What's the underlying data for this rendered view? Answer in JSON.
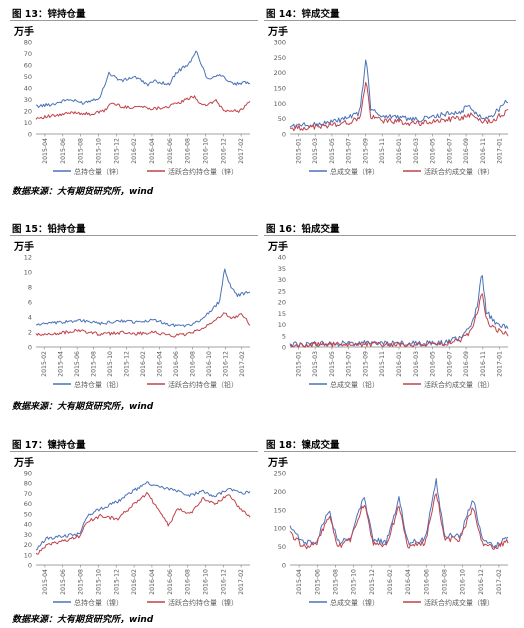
{
  "figures": [
    {
      "title": "图 13：锌持仓量"
    },
    {
      "title": "图 14：锌成交量"
    },
    {
      "title": "图 15：铅持仓量"
    },
    {
      "title": "图 16：铅成交量"
    },
    {
      "title": "图 17：镍持仓量"
    },
    {
      "title": "图 18：镍成交量"
    }
  ],
  "sources": [
    "数据来源：大有期货研究所，wind",
    "数据来源：大有期货研究所，wind",
    "数据来源：大有期货研究所，wind"
  ],
  "colors": {
    "series1": "#4a72b8",
    "series2": "#c0424b",
    "axis": "#808080",
    "text": "#595959"
  },
  "chart_data": [
    {
      "type": "line",
      "title": "图 13：锌持仓量",
      "unit_label": "万手",
      "ylim": [
        0,
        80
      ],
      "yticks": [
        0,
        10,
        20,
        30,
        40,
        50,
        60,
        70,
        80
      ],
      "xticks": [
        "2015-04",
        "2015-06",
        "2015-08",
        "2015-10",
        "2015-12",
        "2016-02",
        "2016-04",
        "2016-06",
        "2016-08",
        "2016-10",
        "2016-12",
        "2017-02"
      ],
      "legend_position": "bottom",
      "series": [
        {
          "name": "总持仓量（锌）",
          "anchors": [
            [
              0,
              24
            ],
            [
              0.08,
              26
            ],
            [
              0.15,
              30
            ],
            [
              0.22,
              27
            ],
            [
              0.3,
              32
            ],
            [
              0.34,
              53
            ],
            [
              0.4,
              46
            ],
            [
              0.46,
              50
            ],
            [
              0.52,
              43
            ],
            [
              0.56,
              46
            ],
            [
              0.62,
              43
            ],
            [
              0.66,
              54
            ],
            [
              0.72,
              62
            ],
            [
              0.75,
              72
            ],
            [
              0.8,
              48
            ],
            [
              0.86,
              52
            ],
            [
              0.92,
              43
            ],
            [
              1.0,
              45
            ]
          ]
        },
        {
          "name": "活跃合约持仓量（锌）",
          "anchors": [
            [
              0,
              14
            ],
            [
              0.1,
              16
            ],
            [
              0.18,
              19
            ],
            [
              0.25,
              17
            ],
            [
              0.32,
              20
            ],
            [
              0.35,
              27
            ],
            [
              0.42,
              23
            ],
            [
              0.48,
              24
            ],
            [
              0.55,
              22
            ],
            [
              0.62,
              24
            ],
            [
              0.68,
              28
            ],
            [
              0.74,
              33
            ],
            [
              0.78,
              24
            ],
            [
              0.84,
              29
            ],
            [
              0.88,
              20
            ],
            [
              0.95,
              20
            ],
            [
              1.0,
              28
            ]
          ]
        }
      ]
    },
    {
      "type": "line",
      "title": "图 14：锌成交量",
      "unit_label": "万手",
      "ylim": [
        0,
        300
      ],
      "yticks": [
        0,
        50,
        100,
        150,
        200,
        250,
        300
      ],
      "xticks": [
        "2015-01",
        "2015-03",
        "2015-05",
        "2015-07",
        "2015-09",
        "2015-11",
        "2016-01",
        "2016-03",
        "2016-05",
        "2016-07",
        "2016-09",
        "2016-11",
        "2017-01"
      ],
      "legend_position": "bottom",
      "series": [
        {
          "name": "总成交量（锌）",
          "anchors": [
            [
              0,
              25
            ],
            [
              0.1,
              30
            ],
            [
              0.2,
              40
            ],
            [
              0.28,
              55
            ],
            [
              0.32,
              70
            ],
            [
              0.35,
              255
            ],
            [
              0.37,
              80
            ],
            [
              0.42,
              60
            ],
            [
              0.5,
              55
            ],
            [
              0.58,
              45
            ],
            [
              0.65,
              55
            ],
            [
              0.72,
              65
            ],
            [
              0.78,
              70
            ],
            [
              0.82,
              95
            ],
            [
              0.86,
              60
            ],
            [
              0.92,
              55
            ],
            [
              1.0,
              110
            ]
          ]
        },
        {
          "name": "活跃合约成交量（锌）",
          "anchors": [
            [
              0,
              18
            ],
            [
              0.1,
              22
            ],
            [
              0.2,
              30
            ],
            [
              0.28,
              40
            ],
            [
              0.32,
              52
            ],
            [
              0.35,
              175
            ],
            [
              0.37,
              55
            ],
            [
              0.42,
              45
            ],
            [
              0.5,
              40
            ],
            [
              0.58,
              33
            ],
            [
              0.65,
              40
            ],
            [
              0.72,
              48
            ],
            [
              0.78,
              50
            ],
            [
              0.82,
              65
            ],
            [
              0.86,
              45
            ],
            [
              0.92,
              42
            ],
            [
              1.0,
              75
            ]
          ]
        }
      ]
    },
    {
      "type": "line",
      "title": "图 15：铅持仓量",
      "unit_label": "万手",
      "ylim": [
        0,
        12
      ],
      "yticks": [
        0,
        2,
        4,
        6,
        8,
        10,
        12
      ],
      "xticks": [
        "2015-02",
        "2015-04",
        "2015-06",
        "2015-08",
        "2015-10",
        "2015-12",
        "2016-02",
        "2016-04",
        "2016-06",
        "2016-08",
        "2016-10",
        "2016-12",
        "2017-02"
      ],
      "legend_position": "bottom",
      "series": [
        {
          "name": "总持仓量（铅）",
          "anchors": [
            [
              0,
              3.0
            ],
            [
              0.1,
              3.2
            ],
            [
              0.2,
              3.6
            ],
            [
              0.3,
              3.1
            ],
            [
              0.4,
              3.5
            ],
            [
              0.48,
              3.3
            ],
            [
              0.56,
              3.6
            ],
            [
              0.62,
              3.0
            ],
            [
              0.7,
              2.8
            ],
            [
              0.76,
              3.4
            ],
            [
              0.82,
              4.8
            ],
            [
              0.86,
              6.2
            ],
            [
              0.88,
              10.6
            ],
            [
              0.91,
              8.0
            ],
            [
              0.94,
              6.8
            ],
            [
              1.0,
              7.5
            ]
          ]
        },
        {
          "name": "活跃合约持仓量（铅）",
          "anchors": [
            [
              0,
              1.6
            ],
            [
              0.1,
              1.8
            ],
            [
              0.2,
              2.2
            ],
            [
              0.3,
              1.7
            ],
            [
              0.4,
              1.9
            ],
            [
              0.48,
              1.8
            ],
            [
              0.56,
              2.0
            ],
            [
              0.62,
              1.5
            ],
            [
              0.7,
              1.6
            ],
            [
              0.76,
              2.2
            ],
            [
              0.82,
              3.2
            ],
            [
              0.88,
              4.6
            ],
            [
              0.92,
              3.8
            ],
            [
              0.96,
              4.5
            ],
            [
              1.0,
              3.0
            ]
          ]
        }
      ]
    },
    {
      "type": "line",
      "title": "图 16：铅成交量",
      "unit_label": "万手",
      "ylim": [
        0,
        40
      ],
      "yticks": [
        0,
        5,
        10,
        15,
        20,
        25,
        30,
        35,
        40
      ],
      "xticks": [
        "2015-01",
        "2015-03",
        "2015-05",
        "2015-07",
        "2015-09",
        "2015-11",
        "2016-01",
        "2016-03",
        "2016-05",
        "2016-07",
        "2016-09",
        "2016-11",
        "2017-01"
      ],
      "legend_position": "bottom",
      "series": [
        {
          "name": "总成交量（铅）",
          "anchors": [
            [
              0,
              1.2
            ],
            [
              0.2,
              1.5
            ],
            [
              0.4,
              1.8
            ],
            [
              0.6,
              1.6
            ],
            [
              0.7,
              2.0
            ],
            [
              0.78,
              4.0
            ],
            [
              0.83,
              9.0
            ],
            [
              0.86,
              19.0
            ],
            [
              0.88,
              33.0
            ],
            [
              0.9,
              16.0
            ],
            [
              0.94,
              11.0
            ],
            [
              1.0,
              8.0
            ]
          ]
        },
        {
          "name": "活跃合约成交量（铅）",
          "anchors": [
            [
              0,
              0.8
            ],
            [
              0.2,
              1.0
            ],
            [
              0.4,
              1.2
            ],
            [
              0.6,
              1.0
            ],
            [
              0.7,
              1.4
            ],
            [
              0.78,
              3.0
            ],
            [
              0.83,
              7.0
            ],
            [
              0.86,
              15.0
            ],
            [
              0.88,
              26.0
            ],
            [
              0.9,
              12.0
            ],
            [
              0.94,
              8.0
            ],
            [
              1.0,
              6.0
            ]
          ]
        }
      ]
    },
    {
      "type": "line",
      "title": "图 17：镍持仓量",
      "unit_label": "万手",
      "ylim": [
        0,
        90
      ],
      "yticks": [
        0,
        10,
        20,
        30,
        40,
        50,
        60,
        70,
        80,
        90
      ],
      "xticks": [
        "2015-04",
        "2015-06",
        "2015-08",
        "2015-10",
        "2015-12",
        "2016-02",
        "2016-04",
        "2016-06",
        "2016-08",
        "2016-10",
        "2016-12",
        "2017-02"
      ],
      "legend_position": "bottom",
      "series": [
        {
          "name": "总持仓量（镍）",
          "anchors": [
            [
              0,
              15
            ],
            [
              0.05,
              26
            ],
            [
              0.12,
              28
            ],
            [
              0.2,
              30
            ],
            [
              0.24,
              48
            ],
            [
              0.3,
              55
            ],
            [
              0.38,
              62
            ],
            [
              0.45,
              72
            ],
            [
              0.52,
              80
            ],
            [
              0.58,
              76
            ],
            [
              0.65,
              73
            ],
            [
              0.72,
              68
            ],
            [
              0.78,
              72
            ],
            [
              0.84,
              67
            ],
            [
              0.9,
              75
            ],
            [
              0.95,
              70
            ],
            [
              1.0,
              71
            ]
          ]
        },
        {
          "name": "活跃合约持仓量（镍）",
          "anchors": [
            [
              0,
              10
            ],
            [
              0.05,
              20
            ],
            [
              0.12,
              23
            ],
            [
              0.2,
              28
            ],
            [
              0.24,
              42
            ],
            [
              0.3,
              48
            ],
            [
              0.38,
              45
            ],
            [
              0.45,
              58
            ],
            [
              0.52,
              70
            ],
            [
              0.58,
              52
            ],
            [
              0.62,
              38
            ],
            [
              0.66,
              55
            ],
            [
              0.72,
              50
            ],
            [
              0.78,
              65
            ],
            [
              0.84,
              60
            ],
            [
              0.9,
              70
            ],
            [
              0.95,
              55
            ],
            [
              1.0,
              48
            ]
          ]
        }
      ]
    },
    {
      "type": "line",
      "title": "图 18：镍成交量",
      "unit_label": "万手",
      "ylim": [
        0,
        250
      ],
      "yticks": [
        0,
        50,
        100,
        150,
        200,
        250
      ],
      "xticks": [
        "2015-04",
        "2015-06",
        "2015-08",
        "2015-10",
        "2015-12",
        "2016-02",
        "2016-04",
        "2016-06",
        "2016-08",
        "2016-10",
        "2016-12",
        "2017-02"
      ],
      "legend_position": "bottom",
      "series": [
        {
          "name": "总成交量（镍）",
          "anchors": [
            [
              0,
              100
            ],
            [
              0.06,
              60
            ],
            [
              0.12,
              65
            ],
            [
              0.18,
              150
            ],
            [
              0.22,
              60
            ],
            [
              0.28,
              80
            ],
            [
              0.34,
              190
            ],
            [
              0.38,
              70
            ],
            [
              0.44,
              60
            ],
            [
              0.5,
              180
            ],
            [
              0.54,
              60
            ],
            [
              0.62,
              70
            ],
            [
              0.67,
              230
            ],
            [
              0.71,
              80
            ],
            [
              0.78,
              80
            ],
            [
              0.84,
              180
            ],
            [
              0.88,
              70
            ],
            [
              0.94,
              50
            ],
            [
              1.0,
              80
            ]
          ]
        },
        {
          "name": "活跃合约成交量（镍）",
          "anchors": [
            [
              0,
              85
            ],
            [
              0.06,
              50
            ],
            [
              0.12,
              55
            ],
            [
              0.18,
              135
            ],
            [
              0.22,
              50
            ],
            [
              0.28,
              70
            ],
            [
              0.34,
              170
            ],
            [
              0.38,
              60
            ],
            [
              0.44,
              50
            ],
            [
              0.5,
              160
            ],
            [
              0.54,
              50
            ],
            [
              0.62,
              60
            ],
            [
              0.67,
              200
            ],
            [
              0.71,
              70
            ],
            [
              0.78,
              70
            ],
            [
              0.84,
              160
            ],
            [
              0.88,
              60
            ],
            [
              0.94,
              45
            ],
            [
              1.0,
              65
            ]
          ]
        }
      ]
    }
  ]
}
